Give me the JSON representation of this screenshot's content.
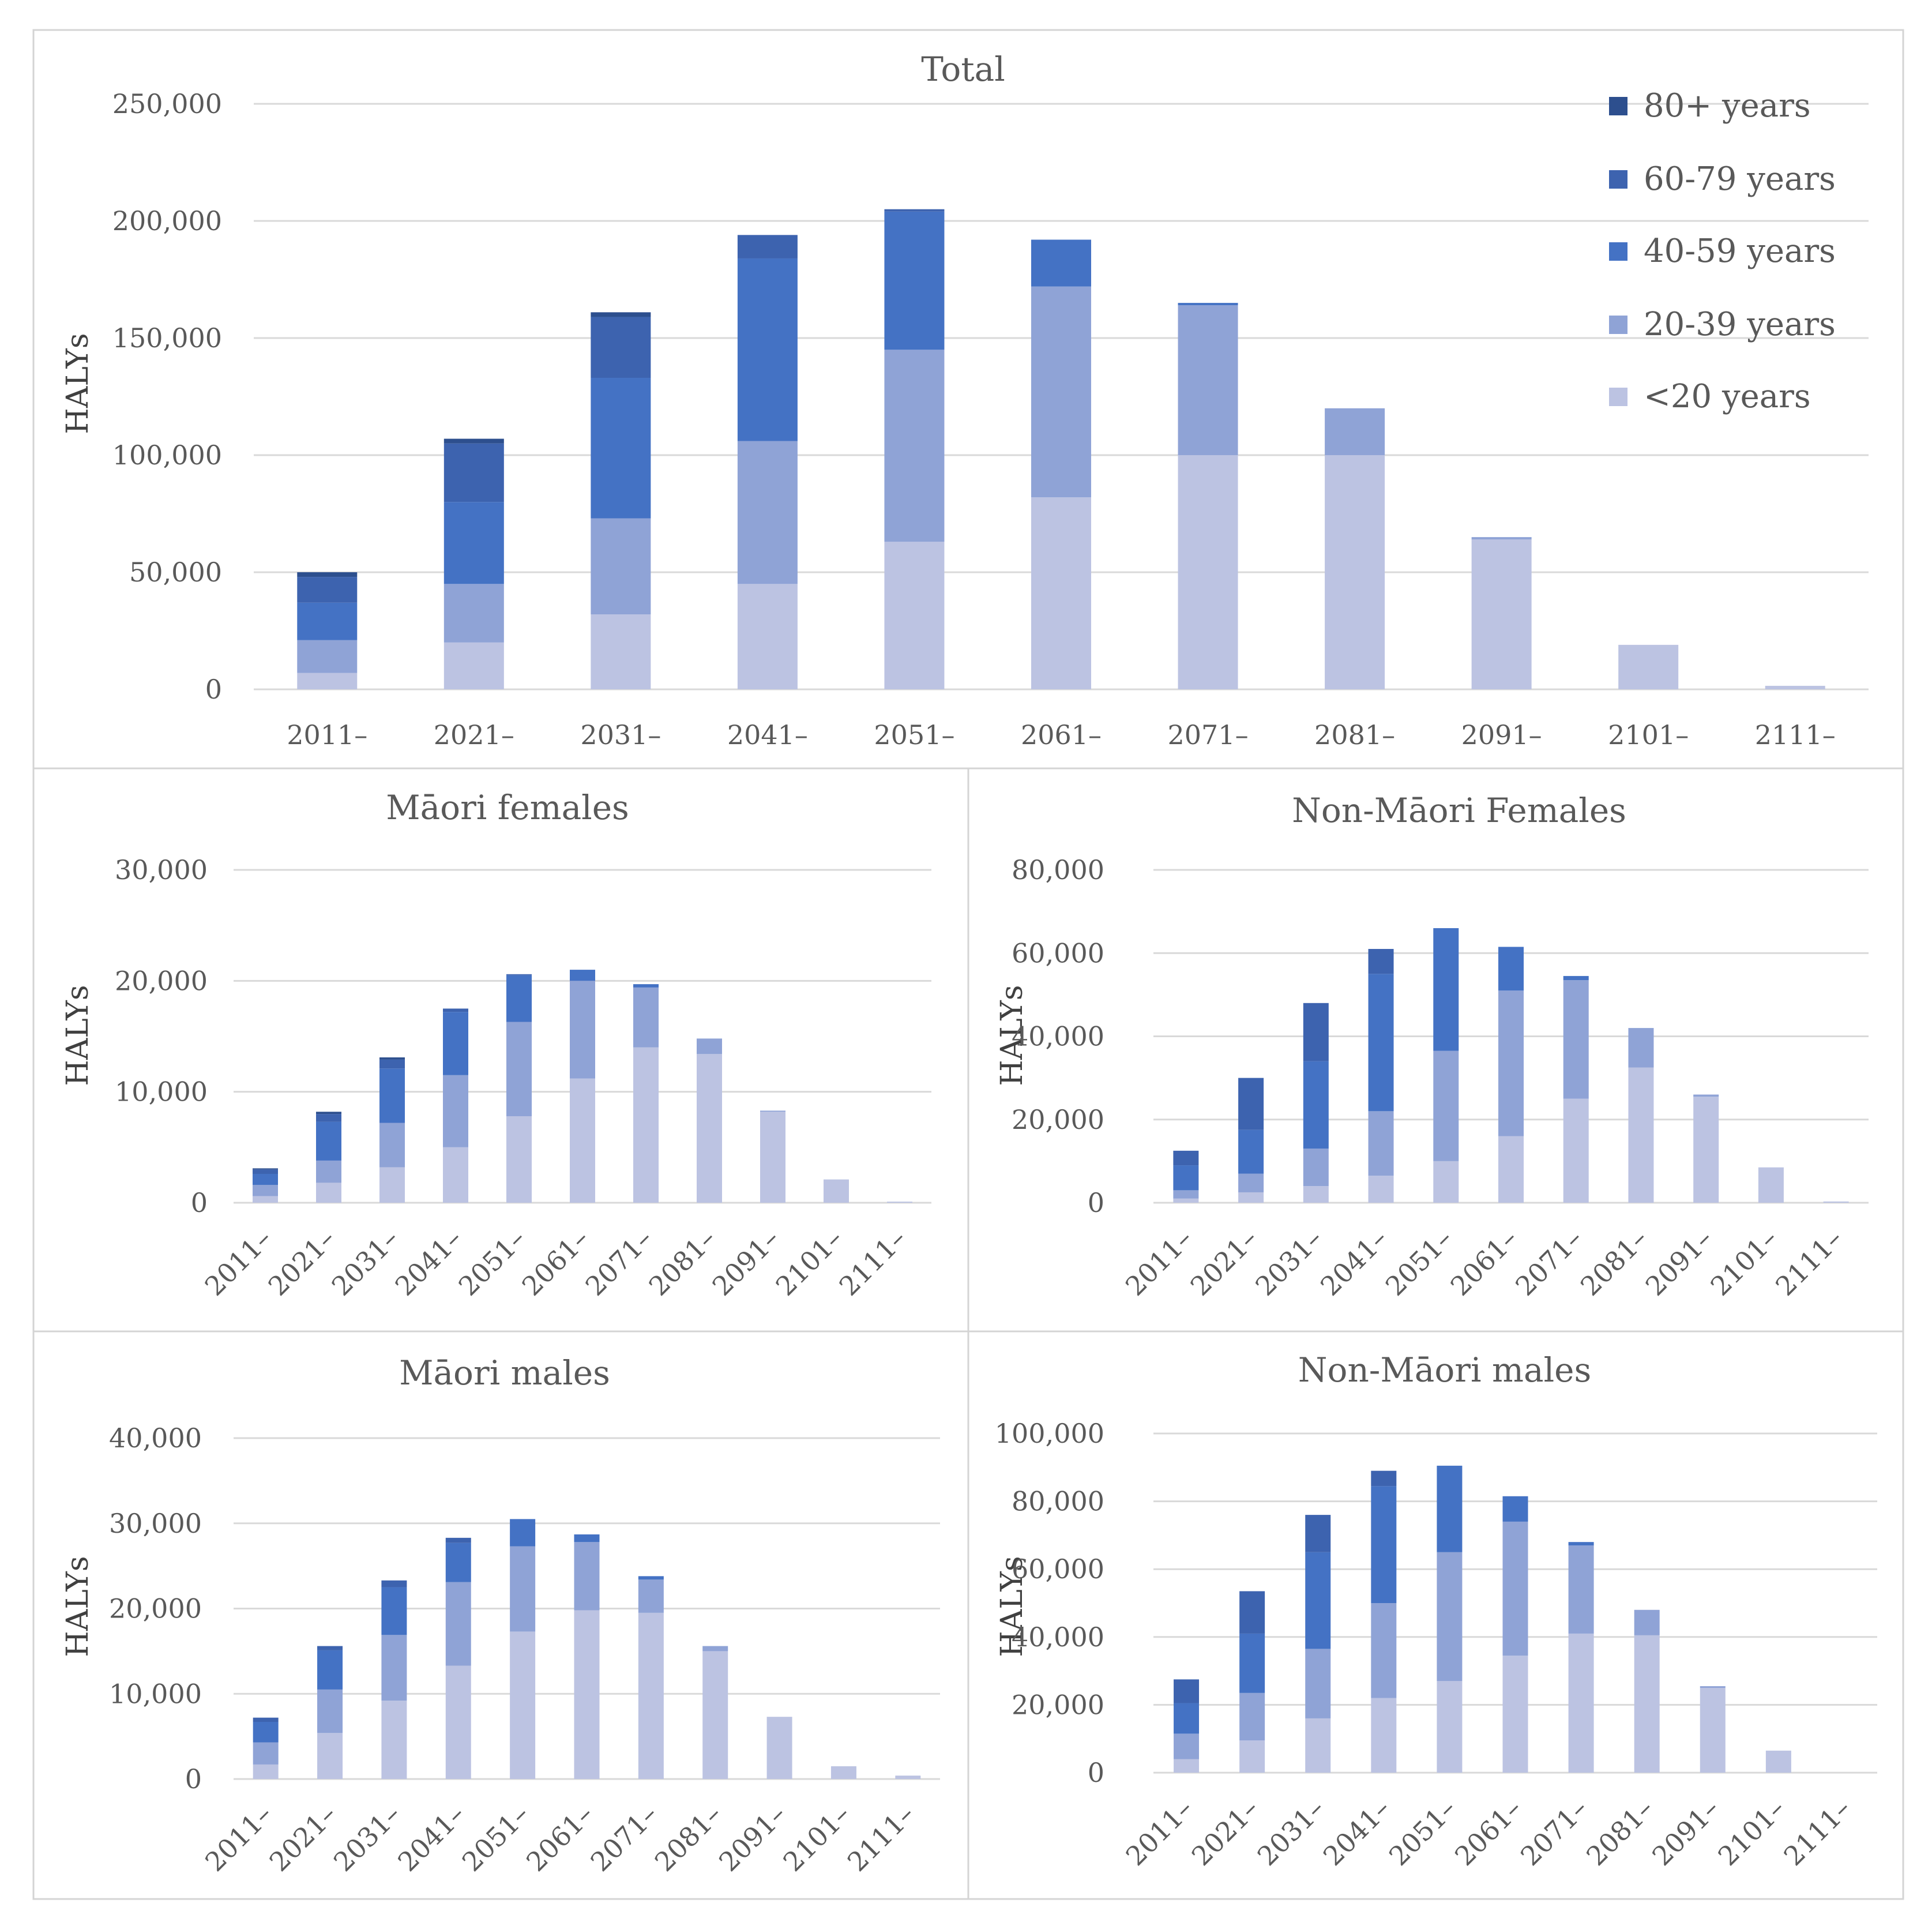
{
  "colors": {
    "<20 years": "#bcc3e2",
    "20-39 years": "#8fa3d6",
    "40-59 years": "#4472c4",
    "60-79 years": "#3d63af",
    "80+ years": "#2d4f8e"
  },
  "chart_data": [
    {
      "type": "bar",
      "stacked": true,
      "title": "Total",
      "ylabel": "HALYs",
      "xlabel": "",
      "ylim": [
        0,
        250000
      ],
      "yticks": [
        0,
        50000,
        100000,
        150000,
        200000,
        250000
      ],
      "ytick_labels": [
        "0",
        "50,000",
        "100,000",
        "150,000",
        "200,000",
        "250,000"
      ],
      "categories": [
        "2011–",
        "2021–",
        "2031–",
        "2041–",
        "2051–",
        "2061–",
        "2071–",
        "2081–",
        "2091–",
        "2101–",
        "2111–"
      ],
      "legend": {
        "position": "top-right",
        "entries": [
          "80+ years",
          "60-79 years",
          "40-59 years",
          "20-39 years",
          "<20 years"
        ]
      },
      "series": [
        {
          "name": "<20 years",
          "values": [
            7000,
            20000,
            32000,
            45000,
            63000,
            82000,
            100000,
            100000,
            64000,
            19000,
            1500
          ]
        },
        {
          "name": "20-39 years",
          "values": [
            14000,
            25000,
            41000,
            61000,
            82000,
            90000,
            64000,
            20000,
            1000,
            0,
            0
          ]
        },
        {
          "name": "40-59 years",
          "values": [
            16000,
            35000,
            60000,
            78000,
            59000,
            20000,
            1000,
            0,
            0,
            0,
            0
          ]
        },
        {
          "name": "60-79 years",
          "values": [
            11000,
            25000,
            26000,
            10000,
            1000,
            0,
            0,
            0,
            0,
            0,
            0
          ]
        },
        {
          "name": "80+ years",
          "values": [
            2000,
            2000,
            2000,
            0,
            0,
            0,
            0,
            0,
            0,
            0,
            0
          ]
        }
      ]
    },
    {
      "type": "bar",
      "stacked": true,
      "title": "Māori females",
      "ylabel": "HALYs",
      "xlabel": "",
      "ylim": [
        0,
        30000
      ],
      "yticks": [
        0,
        10000,
        20000,
        30000
      ],
      "ytick_labels": [
        "0",
        "10,000",
        "20,000",
        "30,000"
      ],
      "categories": [
        "2011–",
        "2021–",
        "2031–",
        "2041–",
        "2051–",
        "2061–",
        "2071–",
        "2081–",
        "2091–",
        "2101–",
        "2111–"
      ],
      "series": [
        {
          "name": "<20 years",
          "values": [
            600,
            1800,
            3200,
            5000,
            7800,
            11200,
            14000,
            13400,
            8200,
            2100,
            100
          ]
        },
        {
          "name": "20-39 years",
          "values": [
            1000,
            2000,
            4000,
            6500,
            8500,
            8800,
            5400,
            1400,
            100,
            0,
            0
          ]
        },
        {
          "name": "40-59 years",
          "values": [
            1000,
            3500,
            4900,
            5700,
            4200,
            1000,
            300,
            0,
            0,
            0,
            0
          ]
        },
        {
          "name": "60-79 years",
          "values": [
            400,
            700,
            800,
            300,
            100,
            0,
            0,
            0,
            0,
            0,
            0
          ]
        },
        {
          "name": "80+ years",
          "values": [
            100,
            200,
            200,
            0,
            0,
            0,
            0,
            0,
            0,
            0,
            0
          ]
        }
      ]
    },
    {
      "type": "bar",
      "stacked": true,
      "title": "Non-Māori Females",
      "ylabel": "HALYs",
      "xlabel": "",
      "ylim": [
        0,
        80000
      ],
      "yticks": [
        0,
        20000,
        40000,
        60000,
        80000
      ],
      "ytick_labels": [
        "0",
        "20,000",
        "40,000",
        "60,000",
        "80,000"
      ],
      "categories": [
        "2011–",
        "2021–",
        "2031–",
        "2041–",
        "2051–",
        "2061–",
        "2071–",
        "2081–",
        "2091–",
        "2101–",
        "2111–"
      ],
      "series": [
        {
          "name": "<20 years",
          "values": [
            1000,
            2500,
            4000,
            6500,
            10000,
            16000,
            25000,
            32500,
            25500,
            8500,
            300
          ]
        },
        {
          "name": "20-39 years",
          "values": [
            2000,
            4500,
            9000,
            15500,
            26500,
            35000,
            28500,
            9500,
            500,
            0,
            0
          ]
        },
        {
          "name": "40-59 years",
          "values": [
            6000,
            10500,
            21000,
            33000,
            29500,
            10500,
            1000,
            0,
            0,
            0,
            0
          ]
        },
        {
          "name": "60-79 years",
          "values": [
            3500,
            12500,
            14000,
            6000,
            0,
            0,
            0,
            0,
            0,
            0,
            0
          ]
        },
        {
          "name": "80+ years",
          "values": [
            0,
            0,
            0,
            0,
            0,
            0,
            0,
            0,
            0,
            0,
            0
          ]
        }
      ]
    },
    {
      "type": "bar",
      "stacked": true,
      "title": "Māori males",
      "ylabel": "HALYs",
      "xlabel": "",
      "ylim": [
        0,
        40000
      ],
      "yticks": [
        0,
        10000,
        20000,
        30000,
        40000
      ],
      "ytick_labels": [
        "0",
        "10,000",
        "20,000",
        "30,000",
        "40,000"
      ],
      "categories": [
        "2011–",
        "2021–",
        "2031–",
        "2041–",
        "2051–",
        "2061–",
        "2071–",
        "2081–",
        "2091–",
        "2101–",
        "2111–"
      ],
      "series": [
        {
          "name": "<20 years",
          "values": [
            1700,
            5400,
            9200,
            13300,
            17300,
            19800,
            19500,
            15000,
            7300,
            1500,
            400
          ]
        },
        {
          "name": "20-39 years",
          "values": [
            2600,
            5100,
            7700,
            9800,
            10000,
            8000,
            3900,
            600,
            0,
            0,
            0
          ]
        },
        {
          "name": "40-59 years",
          "values": [
            2400,
            4600,
            5600,
            4600,
            3200,
            900,
            400,
            0,
            0,
            0,
            0
          ]
        },
        {
          "name": "60-79 years",
          "values": [
            500,
            500,
            800,
            600,
            0,
            0,
            0,
            0,
            0,
            0,
            0
          ]
        },
        {
          "name": "80+ years",
          "values": [
            0,
            0,
            0,
            0,
            0,
            0,
            0,
            0,
            0,
            0,
            0
          ]
        }
      ]
    },
    {
      "type": "bar",
      "stacked": true,
      "title": "Non-Māori males",
      "ylabel": "HALYs",
      "xlabel": "",
      "ylim": [
        0,
        100000
      ],
      "yticks": [
        0,
        20000,
        40000,
        60000,
        80000,
        100000
      ],
      "ytick_labels": [
        "0",
        "20,000",
        "40,000",
        "60,000",
        "80,000",
        "100,000"
      ],
      "categories": [
        "2011–",
        "2021–",
        "2031–",
        "2041–",
        "2051–",
        "2061–",
        "2071–",
        "2081–",
        "2091–",
        "2101–",
        "2111–"
      ],
      "series": [
        {
          "name": "<20 years",
          "values": [
            4000,
            9500,
            16000,
            22000,
            27000,
            34500,
            41000,
            40500,
            25000,
            6500,
            0
          ]
        },
        {
          "name": "20-39 years",
          "values": [
            7500,
            14000,
            20500,
            28000,
            38000,
            39500,
            26000,
            7500,
            500,
            0,
            0
          ]
        },
        {
          "name": "40-59 years",
          "values": [
            9000,
            17500,
            28500,
            34500,
            25500,
            7500,
            1000,
            0,
            0,
            0,
            0
          ]
        },
        {
          "name": "60-79 years",
          "values": [
            7000,
            12500,
            11000,
            4500,
            0,
            0,
            0,
            0,
            0,
            0,
            0
          ]
        },
        {
          "name": "80+ years",
          "values": [
            0,
            0,
            0,
            0,
            0,
            0,
            0,
            0,
            0,
            0,
            0
          ]
        }
      ]
    }
  ]
}
